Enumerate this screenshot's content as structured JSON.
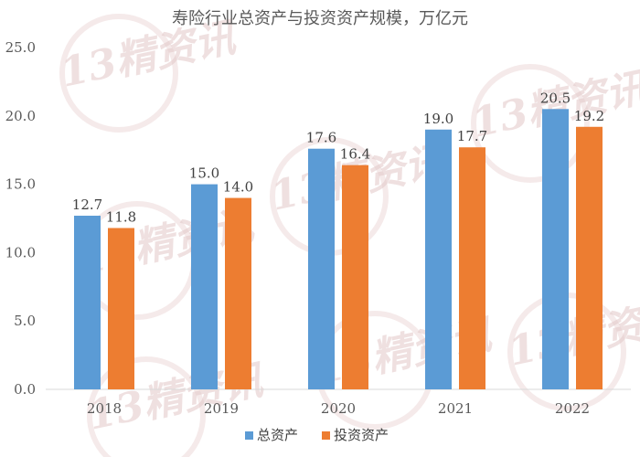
{
  "chart_data": {
    "type": "bar",
    "title": "寿险行业总资产与投资资产规模，万亿元",
    "categories": [
      "2018",
      "2019",
      "2020",
      "2021",
      "2022"
    ],
    "series": [
      {
        "name": "总资产",
        "values": [
          12.7,
          15.0,
          17.6,
          19.0,
          20.5
        ],
        "color": "#5b9bd5"
      },
      {
        "name": "投资资产",
        "values": [
          11.8,
          14.0,
          16.4,
          17.7,
          19.2
        ],
        "color": "#ed7d31"
      }
    ],
    "ylim": [
      0,
      25
    ],
    "yticks": [
      "0.0",
      "5.0",
      "10.0",
      "15.0",
      "20.0",
      "25.0"
    ],
    "grid": false,
    "legend": "bottom"
  },
  "watermark": "13精资讯"
}
